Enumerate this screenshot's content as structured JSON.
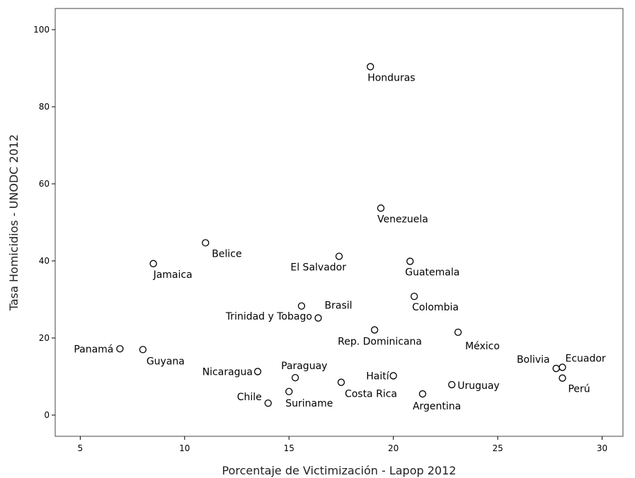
{
  "chart_data": {
    "type": "scatter",
    "title": "",
    "xlabel": "Porcentaje de Victimización - Lapop 2012",
    "ylabel": "Tasa Homicidios - UNODC 2012",
    "xlim": [
      3.8,
      31.0
    ],
    "ylim": [
      -5.5,
      105.5
    ],
    "xticks": [
      "5",
      "10",
      "15",
      "20",
      "25",
      "30"
    ],
    "yticks": [
      "0",
      "20",
      "40",
      "60",
      "80",
      "100"
    ],
    "grid": false,
    "points": [
      {
        "label": "Honduras",
        "x": 18.9,
        "y": 90.4
      },
      {
        "label": "Venezuela",
        "x": 19.4,
        "y": 53.7
      },
      {
        "label": "Belice",
        "x": 11.0,
        "y": 44.7
      },
      {
        "label": "Jamaica",
        "x": 8.5,
        "y": 39.3
      },
      {
        "label": "El Salvador",
        "x": 17.4,
        "y": 41.2
      },
      {
        "label": "Guatemala",
        "x": 20.8,
        "y": 39.9
      },
      {
        "label": "Colombia",
        "x": 21.0,
        "y": 30.8
      },
      {
        "label": "Brasil",
        "x": 16.4,
        "y": 25.2
      },
      {
        "label": "Trinidad y Tobago",
        "x": 15.6,
        "y": 28.3
      },
      {
        "label": "Rep. Dominicana",
        "x": 19.1,
        "y": 22.1
      },
      {
        "label": "México",
        "x": 23.1,
        "y": 21.5
      },
      {
        "label": "Panamá",
        "x": 6.9,
        "y": 17.2
      },
      {
        "label": "Guyana",
        "x": 8.0,
        "y": 17.0
      },
      {
        "label": "Nicaragua",
        "x": 13.5,
        "y": 11.3
      },
      {
        "label": "Paraguay",
        "x": 15.3,
        "y": 9.7
      },
      {
        "label": "Chile",
        "x": 14.0,
        "y": 3.1
      },
      {
        "label": "Suriname",
        "x": 15.0,
        "y": 6.1
      },
      {
        "label": "Costa Rica",
        "x": 17.5,
        "y": 8.5
      },
      {
        "label": "Haití",
        "x": 20.0,
        "y": 10.2
      },
      {
        "label": "Argentina",
        "x": 21.4,
        "y": 5.5
      },
      {
        "label": "Uruguay",
        "x": 22.8,
        "y": 7.9
      },
      {
        "label": "Bolivia",
        "x": 27.8,
        "y": 12.1
      },
      {
        "label": "Ecuador",
        "x": 28.1,
        "y": 12.4
      },
      {
        "label": "Perú",
        "x": 28.1,
        "y": 9.6
      }
    ]
  }
}
